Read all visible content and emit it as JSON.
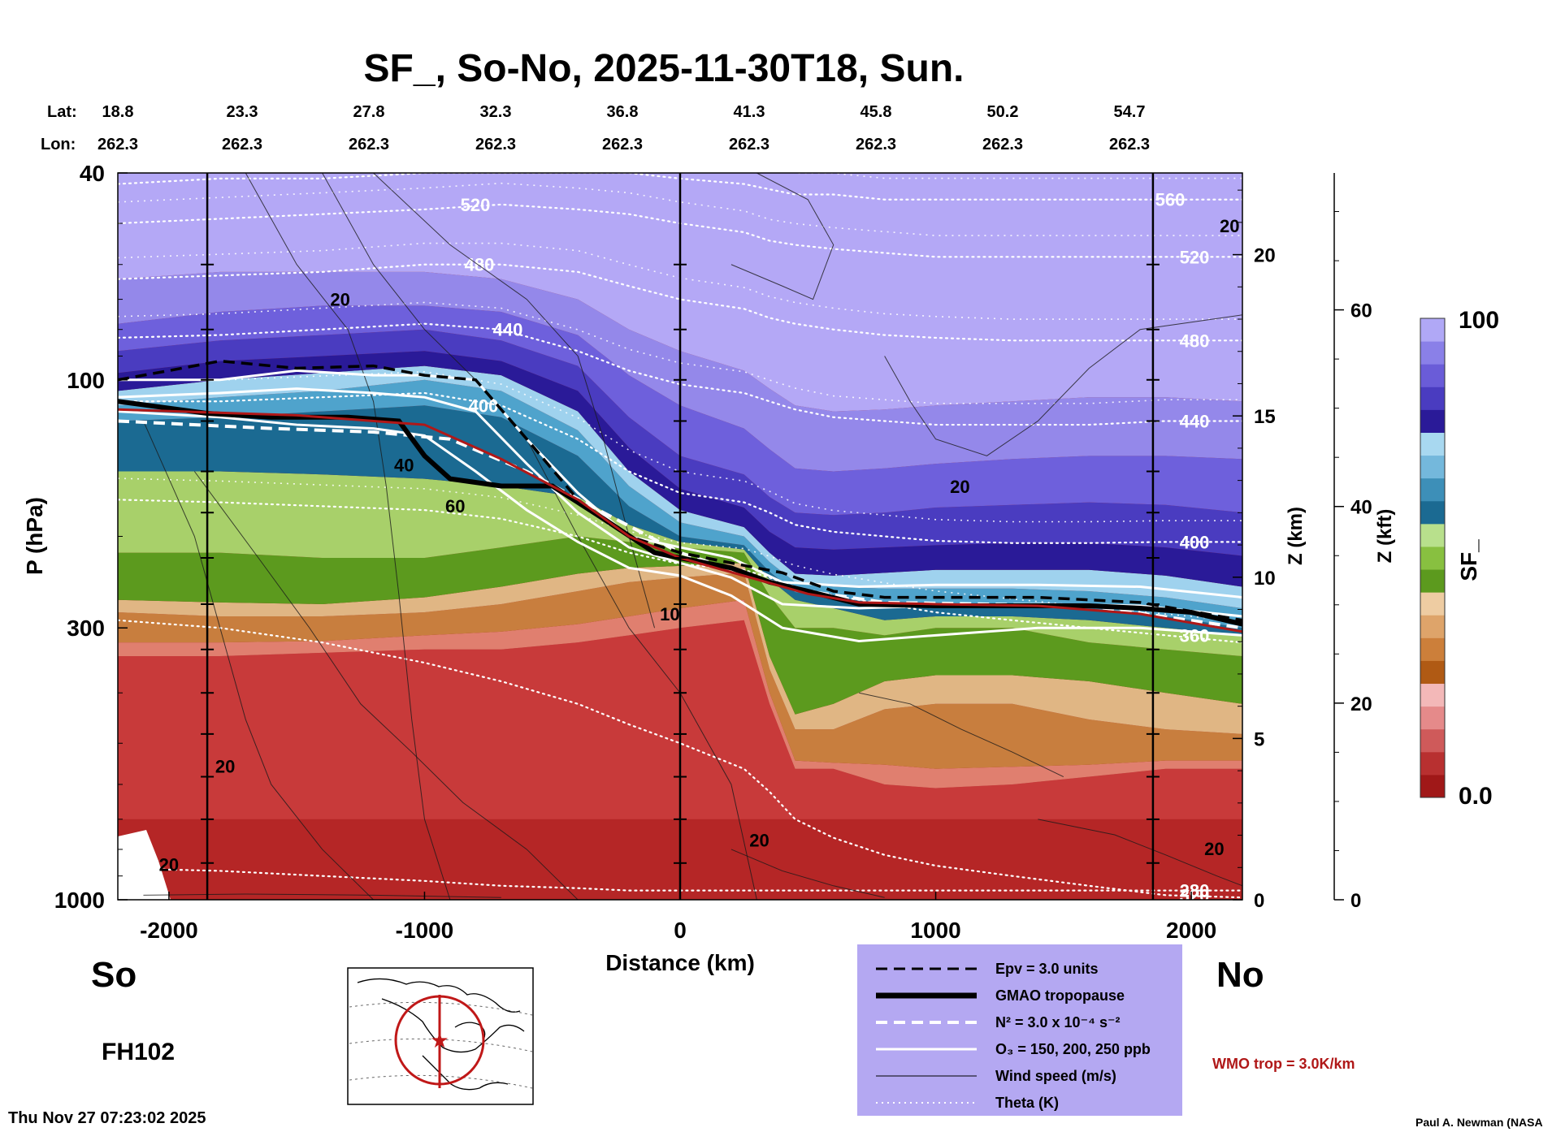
{
  "chart_data": {
    "type": "heatmap",
    "title": "SF_, So-No, 2025-11-30T18, Sun.",
    "lat_label": "Lat:",
    "lon_label": "Lon:",
    "lat_values": [
      "18.8",
      "23.3",
      "27.8",
      "32.3",
      "36.8",
      "41.3",
      "45.8",
      "50.2",
      "54.7"
    ],
    "lon_values": [
      "262.3",
      "262.3",
      "262.3",
      "262.3",
      "262.3",
      "262.3",
      "262.3",
      "262.3",
      "262.3"
    ],
    "xlabel": "Distance (km)",
    "ylabel": "P (hPa)",
    "xlim": [
      -2200,
      2200
    ],
    "ylim": [
      1000,
      40
    ],
    "x_ticks": [
      -2000,
      -1000,
      0,
      1000,
      2000
    ],
    "x_tick_labels": [
      "-2000",
      "-1000",
      "0",
      "1000",
      "2000"
    ],
    "y_ticks": [
      40,
      100,
      300,
      1000
    ],
    "y_tick_labels": [
      "40",
      "100",
      "300",
      "1000"
    ],
    "z_km_label": "Z (km)",
    "z_km_ticks": [
      0,
      5,
      10,
      15,
      20
    ],
    "z_km_tick_labels": [
      "0",
      "5",
      "10",
      "15",
      "20"
    ],
    "z_kft_label": "Z (kft)",
    "z_kft_ticks": [
      0,
      20,
      40,
      60
    ],
    "z_kft_tick_labels": [
      "0",
      "20",
      "40",
      "60"
    ],
    "colorbar": {
      "label": "SF_",
      "min": 0.0,
      "max": 100,
      "min_label": "0.0",
      "max_label": "100",
      "colors": [
        "#a01818",
        "#b83030",
        "#cf5a5a",
        "#e58a8a",
        "#f3b8b8",
        "#b05a14",
        "#cc7f3a",
        "#dea46a",
        "#eecca2",
        "#5c9a1e",
        "#88c040",
        "#b8e08c",
        "#1b6a92",
        "#3d8fb8",
        "#74b8dc",
        "#a8d8f0",
        "#2a1a98",
        "#4a3cc0",
        "#6a5cd8",
        "#8a80e8",
        "#b0a8f6"
      ]
    },
    "theta_contours": [
      {
        "label": "280",
        "values": [
          280
        ]
      },
      {
        "label": "320",
        "values": [
          320
        ]
      },
      {
        "label": "360",
        "values": [
          360
        ]
      },
      {
        "label": "400",
        "values": [
          400
        ]
      },
      {
        "label": "440",
        "values": [
          440
        ]
      },
      {
        "label": "480",
        "values": [
          480
        ]
      },
      {
        "label": "520",
        "values": [
          520
        ]
      },
      {
        "label": "560",
        "values": [
          560
        ]
      }
    ],
    "wind_labels": [
      "20",
      "20",
      "20",
      "20",
      "20",
      "40",
      "60",
      "10",
      "20",
      "20"
    ],
    "series": [
      {
        "name": "GMAO tropopause",
        "x": [
          -2200,
          -1850,
          -1600,
          -1300,
          -1100,
          -1000,
          -900,
          -700,
          -500,
          -300,
          -100,
          0,
          200,
          350,
          500,
          700,
          1000,
          1300,
          1600,
          1800,
          2000,
          2200
        ],
        "p": [
          110,
          116,
          118,
          118,
          120,
          140,
          155,
          160,
          160,
          185,
          215,
          220,
          230,
          245,
          255,
          270,
          272,
          272,
          272,
          275,
          280,
          295
        ]
      },
      {
        "name": "WMO trop = 3.0K/km",
        "x": [
          -2200,
          -1500,
          -1000,
          -700,
          -400,
          -200,
          0,
          300,
          500,
          700,
          1000,
          1400,
          1800,
          2200
        ],
        "p": [
          114,
          117,
          122,
          142,
          170,
          200,
          220,
          242,
          258,
          268,
          270,
          272,
          282,
          305
        ]
      }
    ],
    "legend": [
      {
        "style": "dash-black",
        "label": "Epv = 3.0 units"
      },
      {
        "style": "thick-black",
        "label": "GMAO tropopause"
      },
      {
        "style": "dash-white",
        "label": "N² = 3.0 x 10⁻⁴ s⁻²"
      },
      {
        "style": "solid-white",
        "label": "O₃ = 150, 200, 250 ppb"
      },
      {
        "style": "thin-black",
        "label": "Wind speed (m/s)"
      },
      {
        "style": "dot-white",
        "label": "Theta (K)"
      }
    ],
    "wmo_note": "WMO trop = 3.0K/km",
    "south_label": "So",
    "north_label": "No",
    "forecast_hour": "FH102",
    "timestamp": "Thu Nov 27 07:23:02 2025",
    "credit": "Paul A. Newman (NASA"
  }
}
